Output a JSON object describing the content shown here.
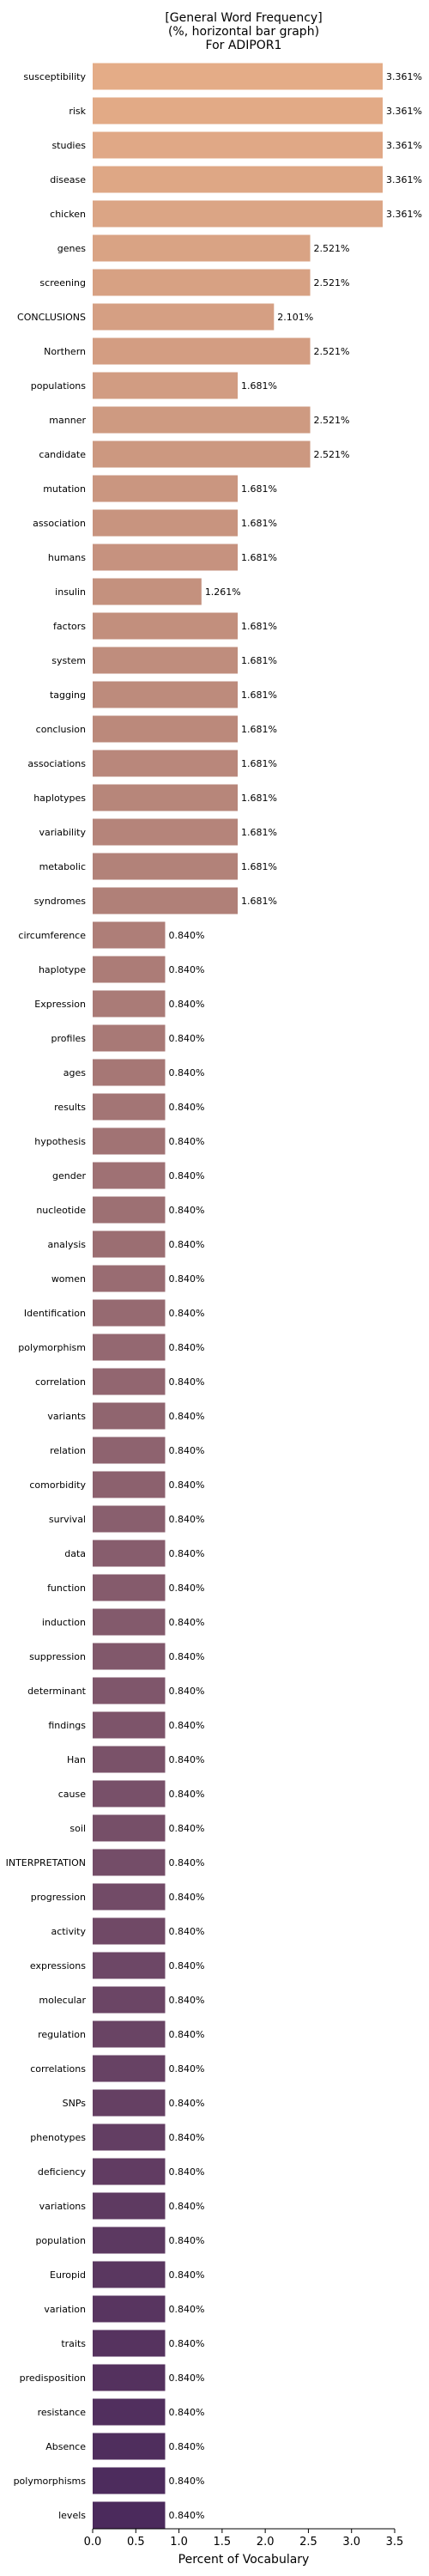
{
  "chart_data": {
    "type": "bar",
    "orientation": "horizontal",
    "title_lines": [
      "[General Word Frequency]",
      "(%, horizontal bar graph)",
      "For ADIPOR1"
    ],
    "xlabel": "Percent of Vocabulary",
    "ylabel": "",
    "xlim": [
      0,
      3.5
    ],
    "xticks": [
      0.0,
      0.5,
      1.0,
      1.5,
      2.0,
      2.5,
      3.0,
      3.5
    ],
    "xtick_labels": [
      "0.0",
      "0.5",
      "1.0",
      "1.5",
      "2.0",
      "2.5",
      "3.0",
      "3.5"
    ],
    "grid": false,
    "palette": "flare",
    "color_start": "#e4ac87",
    "color_end": "#4b2a5c",
    "categories": [
      "susceptibility",
      "risk",
      "studies",
      "disease",
      "chicken",
      "genes",
      "screening",
      "CONCLUSIONS",
      "Northern",
      "populations",
      "manner",
      "candidate",
      "mutation",
      "association",
      "humans",
      "insulin",
      "factors",
      "system",
      "tagging",
      "conclusion",
      "associations",
      "haplotypes",
      "variability",
      "metabolic",
      "syndromes",
      "circumference",
      "haplotype",
      "Expression",
      "profiles",
      "ages",
      "results",
      "hypothesis",
      "gender",
      "nucleotide",
      "analysis",
      "women",
      "Identification",
      "polymorphism",
      "correlation",
      "variants",
      "relation",
      "comorbidity",
      "survival",
      "data",
      "function",
      "induction",
      "suppression",
      "determinant",
      "findings",
      "Han",
      "cause",
      "soil",
      "INTERPRETATION",
      "progression",
      "activity",
      "expressions",
      "molecular",
      "regulation",
      "correlations",
      "SNPs",
      "phenotypes",
      "deficiency",
      "variations",
      "population",
      "Europid",
      "variation",
      "traits",
      "predisposition",
      "resistance",
      "Absence",
      "polymorphisms",
      "levels"
    ],
    "values": [
      3.361,
      3.361,
      3.361,
      3.361,
      3.361,
      2.521,
      2.521,
      2.101,
      2.521,
      1.681,
      2.521,
      2.521,
      1.681,
      1.681,
      1.681,
      1.261,
      1.681,
      1.681,
      1.681,
      1.681,
      1.681,
      1.681,
      1.681,
      1.681,
      1.681,
      0.84,
      0.84,
      0.84,
      0.84,
      0.84,
      0.84,
      0.84,
      0.84,
      0.84,
      0.84,
      0.84,
      0.84,
      0.84,
      0.84,
      0.84,
      0.84,
      0.84,
      0.84,
      0.84,
      0.84,
      0.84,
      0.84,
      0.84,
      0.84,
      0.84,
      0.84,
      0.84,
      0.84,
      0.84,
      0.84,
      0.84,
      0.84,
      0.84,
      0.84,
      0.84,
      0.84,
      0.84,
      0.84,
      0.84,
      0.84,
      0.84,
      0.84,
      0.84,
      0.84,
      0.84,
      0.84,
      0.84
    ],
    "value_labels": [
      "3.361%",
      "3.361%",
      "3.361%",
      "3.361%",
      "3.361%",
      "2.521%",
      "2.521%",
      "2.101%",
      "2.521%",
      "1.681%",
      "2.521%",
      "2.521%",
      "1.681%",
      "1.681%",
      "1.681%",
      "1.261%",
      "1.681%",
      "1.681%",
      "1.681%",
      "1.681%",
      "1.681%",
      "1.681%",
      "1.681%",
      "1.681%",
      "1.681%",
      "0.840%",
      "0.840%",
      "0.840%",
      "0.840%",
      "0.840%",
      "0.840%",
      "0.840%",
      "0.840%",
      "0.840%",
      "0.840%",
      "0.840%",
      "0.840%",
      "0.840%",
      "0.840%",
      "0.840%",
      "0.840%",
      "0.840%",
      "0.840%",
      "0.840%",
      "0.840%",
      "0.840%",
      "0.840%",
      "0.840%",
      "0.840%",
      "0.840%",
      "0.840%",
      "0.840%",
      "0.840%",
      "0.840%",
      "0.840%",
      "0.840%",
      "0.840%",
      "0.840%",
      "0.840%",
      "0.840%",
      "0.840%",
      "0.840%",
      "0.840%",
      "0.840%",
      "0.840%",
      "0.840%",
      "0.840%",
      "0.840%",
      "0.840%",
      "0.840%",
      "0.840%",
      "0.840%"
    ]
  }
}
